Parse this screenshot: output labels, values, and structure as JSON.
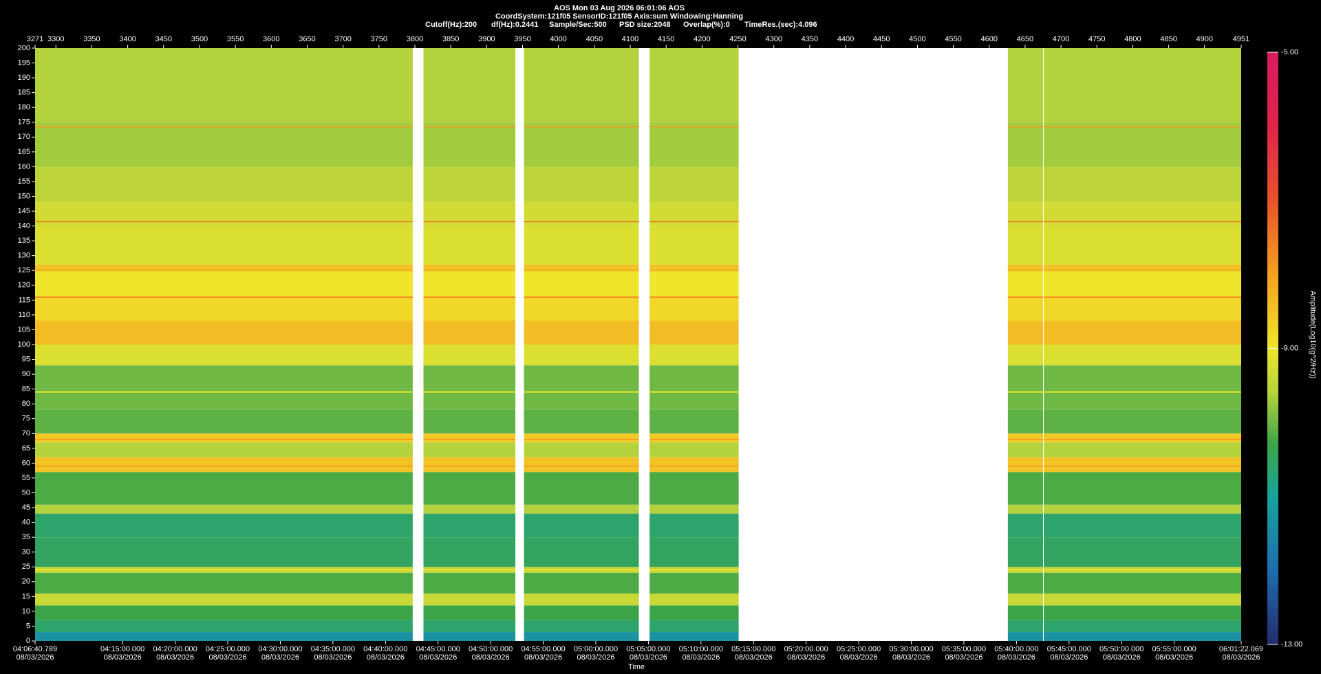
{
  "chart_data": {
    "type": "spectrogram",
    "title": "AOS  Mon 03 Aug 2026 06:01:06  AOS",
    "subtitle": "CoordSystem:121f05   SensorID:121f05    Axis:sum    Windowing:Hanning",
    "parameters": [
      "Cutoff(Hz):200",
      "df(Hz):0.2441",
      "Sample/Sec:500",
      "PSD size:2048",
      "Overlap(%):0",
      "TimeRes.(sec):4.096"
    ],
    "xlim": [
      3271,
      4951
    ],
    "xticks": [
      3271,
      3300,
      3350,
      3400,
      3450,
      3500,
      3550,
      3600,
      3650,
      3700,
      3750,
      3800,
      3850,
      3900,
      3950,
      4000,
      4050,
      4100,
      4150,
      4200,
      4250,
      4300,
      4350,
      4400,
      4450,
      4500,
      4550,
      4600,
      4650,
      4700,
      4750,
      4800,
      4850,
      4900,
      4951
    ],
    "ylim": [
      0,
      200
    ],
    "yticks": [
      0,
      5,
      10,
      15,
      20,
      25,
      30,
      35,
      40,
      45,
      50,
      55,
      60,
      65,
      70,
      75,
      80,
      85,
      90,
      95,
      100,
      105,
      110,
      115,
      120,
      125,
      130,
      135,
      140,
      145,
      150,
      155,
      160,
      165,
      170,
      175,
      180,
      185,
      190,
      195,
      200
    ],
    "time_axis": {
      "label": "Time",
      "date": "08/03/2026",
      "lim": [
        "04:06:40.789",
        "06:01:22.069"
      ],
      "ticks": [
        "04:06:40.789",
        "04:15:00.000",
        "04:20:00.000",
        "04:25:00.000",
        "04:30:00.000",
        "04:35:00.000",
        "04:40:00.000",
        "04:45:00.000",
        "04:50:00.000",
        "04:55:00.000",
        "05:00:00.000",
        "05:05:00.000",
        "05:10:00.000",
        "05:15:00.000",
        "05:20:00.000",
        "05:25:00.000",
        "05:30:00.000",
        "05:35:00.000",
        "05:40:00.000",
        "05:45:00.000",
        "05:50:00.000",
        "05:55:00.000",
        "06:01:22.069"
      ]
    },
    "segments": [
      [
        3271,
        3797
      ],
      [
        3812,
        3940
      ],
      [
        3952,
        4112
      ],
      [
        4127,
        4251
      ],
      [
        4626,
        4675
      ],
      [
        4676,
        4951
      ]
    ],
    "band_edges": [
      0,
      3,
      7,
      12,
      16,
      23,
      25,
      35,
      43,
      46,
      57,
      62,
      67,
      70,
      78,
      85,
      93,
      100,
      108,
      116,
      125,
      127,
      140,
      148,
      160,
      175,
      200
    ],
    "amplitude": [
      -11.3,
      -10.6,
      -10.3,
      -9.4,
      -10.2,
      -9.5,
      -10.5,
      -10.6,
      -9.6,
      -10.2,
      -8.5,
      -9.6,
      -8.6,
      -10.1,
      -10.0,
      -10.0,
      -9.2,
      -8.4,
      -8.8,
      -9.0,
      -8.5,
      -9.2,
      -9.3,
      -9.5,
      -9.7,
      -9.6
    ],
    "tones": {
      "frequency": [
        24,
        59,
        68,
        84,
        116,
        125,
        141.5,
        173.5
      ],
      "amplitude": [
        -9.0,
        -8.0,
        -8.0,
        -9.2,
        -7.8,
        -8.2,
        -7.6,
        -8.0
      ]
    },
    "clim": [
      -13,
      -5
    ],
    "cticks": [
      {
        "value": -5,
        "label": "-5.00"
      },
      {
        "value": -9,
        "label": "-9.00"
      },
      {
        "value": -13,
        "label": "-13.00"
      }
    ],
    "clabel": "Amplitude(Log10(g^2/Hz))",
    "colormap": [
      {
        "value": -13,
        "color": "#232c6c"
      },
      {
        "value": -12,
        "color": "#1f6cae"
      },
      {
        "value": -11,
        "color": "#18a39c"
      },
      {
        "value": -10.3,
        "color": "#3ca448"
      },
      {
        "value": -9.6,
        "color": "#b4d23c"
      },
      {
        "value": -9,
        "color": "#efe52a"
      },
      {
        "value": -8,
        "color": "#f4a020"
      },
      {
        "value": -7,
        "color": "#e8522a"
      },
      {
        "value": -6,
        "color": "#e0244a"
      },
      {
        "value": -5,
        "color": "#d81b60"
      }
    ]
  }
}
